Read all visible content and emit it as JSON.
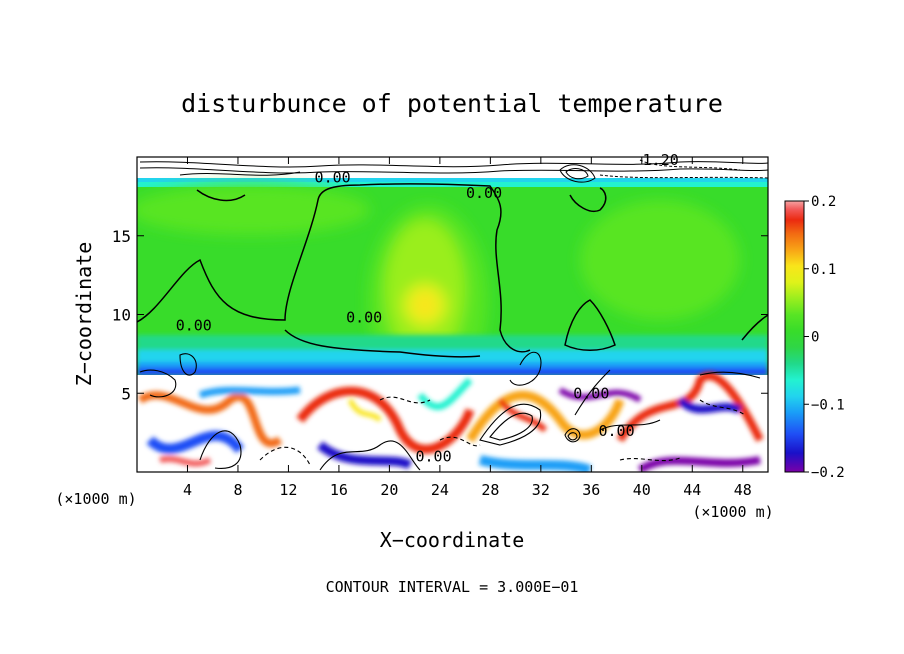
{
  "chart_data": {
    "type": "heatmap",
    "title": "disturbunce of potential temperature",
    "xlabel": "X−coordinate",
    "ylabel": "Z−coordinate",
    "x_unit_label": "(×1000 m)",
    "footer": "CONTOUR INTERVAL = 3.000E−01",
    "xlim": [
      0,
      50
    ],
    "ylim": [
      0,
      20
    ],
    "x_ticks": [
      4,
      8,
      12,
      16,
      20,
      24,
      28,
      32,
      36,
      40,
      44,
      48
    ],
    "y_ticks": [
      5,
      10,
      15
    ],
    "colorbar": {
      "range": [
        -0.2,
        0.2
      ],
      "tick_values": [
        0.2,
        0.1,
        0,
        -0.1,
        -0.2
      ],
      "tick_labels": [
        "0.2",
        "0.1",
        "0",
        "−0.1",
        "−0.2"
      ],
      "colors": [
        "#7a00a8",
        "#1a10c8",
        "#1f4ef5",
        "#1a9ef7",
        "#22d4ee",
        "#23f2d0",
        "#21d98a",
        "#2fd646",
        "#38dc2a",
        "#58e524",
        "#9aee1e",
        "#dff21a",
        "#f9e51a",
        "#f8a416",
        "#f26a12",
        "#eb2a10",
        "#f25a5a",
        "#f6a3a3"
      ]
    },
    "contour_labels": [
      {
        "text": "0.00",
        "x": 15.5,
        "z": 18.7
      },
      {
        "text": "1.20",
        "x": 41.5,
        "z": 19.8
      },
      {
        "text": "0.00",
        "x": 27.5,
        "z": 17.7
      },
      {
        "text": "0.00",
        "x": 18.0,
        "z": 9.8
      },
      {
        "text": "0.00",
        "x": 4.5,
        "z": 9.3
      },
      {
        "text": "0.00",
        "x": 36.0,
        "z": 5.0
      },
      {
        "text": "0.00",
        "x": 38.0,
        "z": 2.6
      },
      {
        "text": "0.00",
        "x": 23.5,
        "z": 1.0
      }
    ]
  }
}
